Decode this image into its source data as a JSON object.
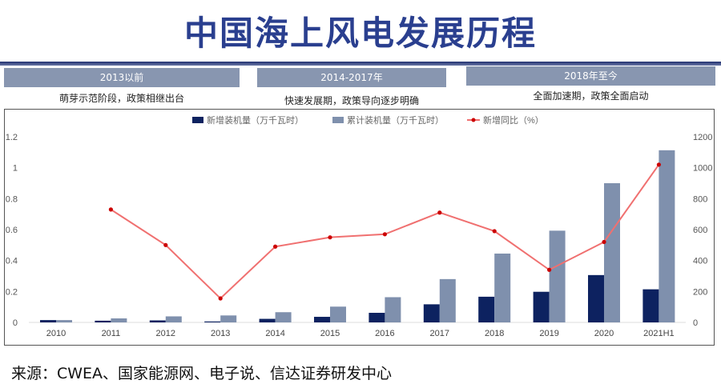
{
  "title": "中国海上风电发展历程",
  "phases": [
    {
      "label": "2013以前",
      "desc": "萌芽示范阶段，政策相继出台"
    },
    {
      "label": "2014-2017年",
      "desc": "快速发展期，政策导向逐步明确"
    },
    {
      "label": "2018年至今",
      "desc": "全面加速期，政策全面启动"
    }
  ],
  "source": "来源：CWEA、国家能源网、电子说、信达证券研发中心",
  "chart_data": {
    "type": "bar+line",
    "categories": [
      "2010",
      "2011",
      "2012",
      "2013",
      "2014",
      "2015",
      "2016",
      "2017",
      "2018",
      "2019",
      "2020",
      "2021H1"
    ],
    "series": [
      {
        "name": "新增装机量（万千瓦时）",
        "type": "bar",
        "axis": "right",
        "color": "#0d2260",
        "values": [
          15,
          11,
          13,
          6,
          23,
          36,
          62,
          117,
          166,
          198,
          306,
          214
        ]
      },
      {
        "name": "累计装机量（万千瓦时）",
        "type": "bar",
        "axis": "right",
        "color": "#7f90ad",
        "values": [
          15,
          26,
          39,
          45,
          66,
          102,
          163,
          280,
          445,
          593,
          900,
          1113
        ]
      },
      {
        "name": "新增同比（%）",
        "type": "line",
        "axis": "left",
        "color": "#f07070",
        "marker_color": "#cc0000",
        "values": [
          null,
          0.73,
          0.5,
          0.155,
          0.49,
          0.55,
          0.57,
          0.71,
          0.59,
          0.34,
          0.52,
          1.02
        ]
      }
    ],
    "left_axis": {
      "ticks": [
        "0",
        "0.2",
        "0.4",
        "0.6",
        "0.8",
        "1",
        "1.2"
      ],
      "range": [
        0,
        1.2
      ]
    },
    "right_axis": {
      "ticks": [
        "0",
        "200",
        "400",
        "600",
        "800",
        "1000",
        "1200"
      ],
      "range": [
        0,
        1200
      ]
    },
    "legend_position": "top",
    "grid": false
  }
}
